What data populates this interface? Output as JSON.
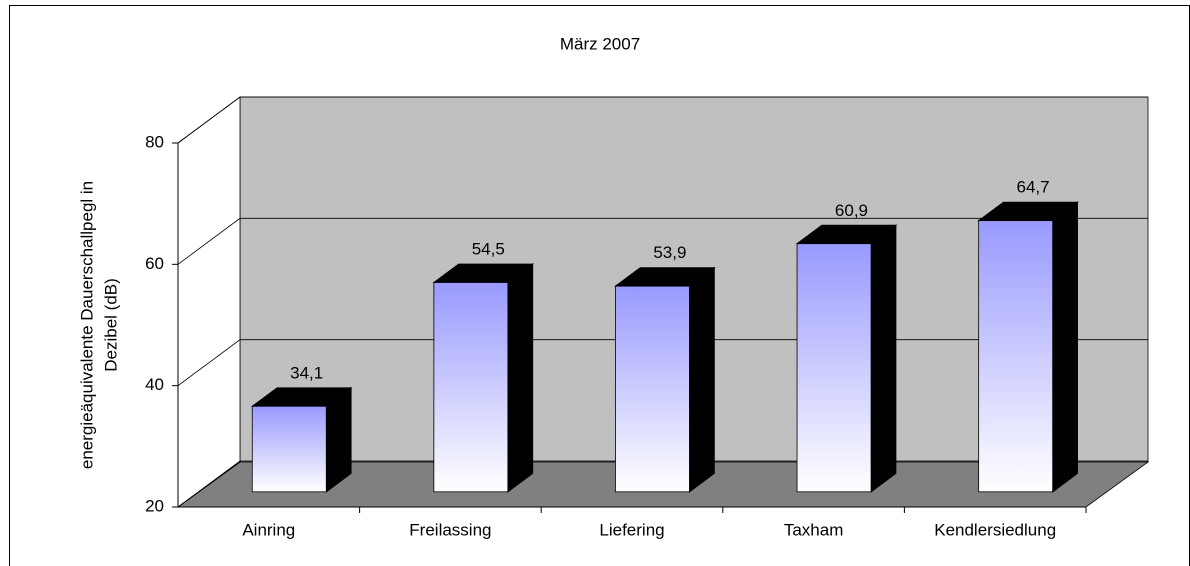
{
  "chart_data": {
    "type": "bar3d",
    "title": "März 2007",
    "ylabel": [
      "energieäquivalente Dauerschallpegl in",
      "Dezibel (dB)"
    ],
    "categories": [
      "Ainring",
      "Freilassing",
      "Liefering",
      "Taxham",
      "Kendlersiedlung"
    ],
    "values": [
      34.1,
      54.5,
      53.9,
      60.9,
      64.7
    ],
    "value_labels": [
      "34,1",
      "54,5",
      "53,9",
      "60,9",
      "64,7"
    ],
    "color": "#9999ff",
    "ylim": [
      20,
      80
    ],
    "yticks": [
      20,
      40,
      60,
      80
    ],
    "grid": true
  }
}
